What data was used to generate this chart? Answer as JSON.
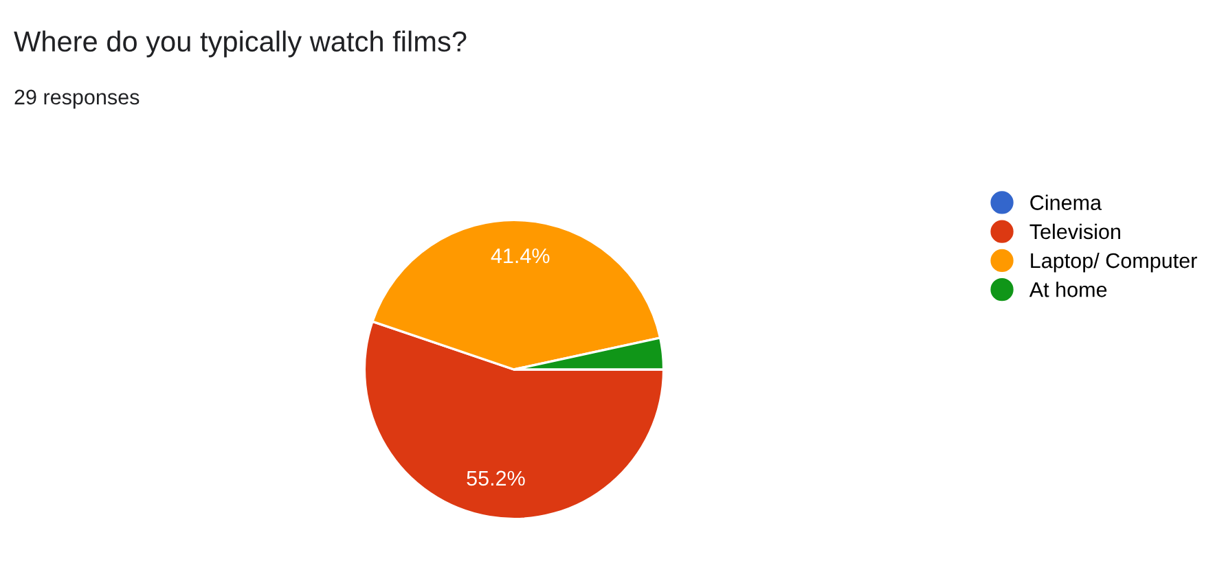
{
  "chart_data": {
    "type": "pie",
    "title": "Where do you typically watch films?",
    "subtitle": "29 responses",
    "categories": [
      "Cinema",
      "Television",
      "Laptop/ Computer",
      "At home"
    ],
    "values": [
      0,
      55.2,
      41.4,
      3.4
    ],
    "colors": [
      "#3366cc",
      "#dc3912",
      "#ff9900",
      "#109618"
    ],
    "value_labels": [
      null,
      "55.2%",
      "41.4%",
      null
    ],
    "legend": "right"
  }
}
